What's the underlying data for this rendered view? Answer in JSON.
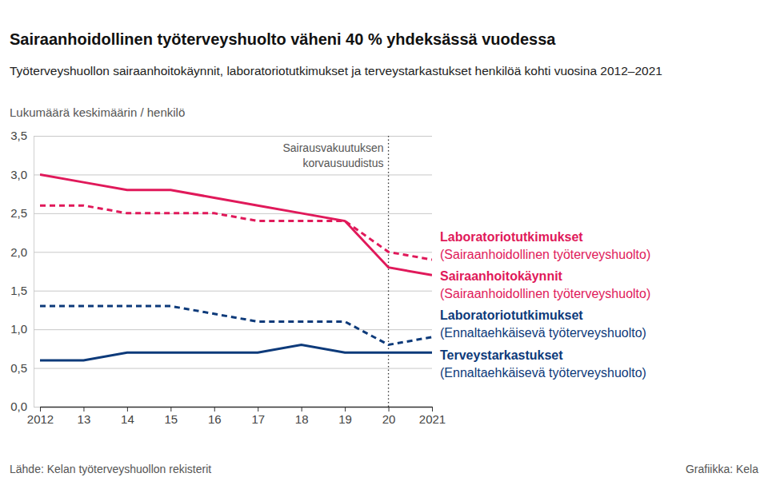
{
  "chart_data": {
    "type": "line",
    "title": "Sairaanhoidollinen työterveyshuolto väheni 40 % yhdeksässä vuodessa",
    "subtitle": "Työterveyshuollon sairaanhoitokäynnit, laboratoriotutkimukset ja terveystarkastukset henkilöä kohti vuosina 2012–2021",
    "y_label": "Lukumäärä keskimäärin / henkilö",
    "source": "Lähde: Kelan työterveyshuollon rekisterit",
    "credit": "Grafiikka: Kela",
    "x": [
      2012,
      2013,
      2014,
      2015,
      2016,
      2017,
      2018,
      2019,
      2020,
      2021
    ],
    "xlim": [
      2012,
      2021
    ],
    "xticks": [
      2012,
      {
        "value": 2013,
        "label": "13"
      },
      {
        "value": 2014,
        "label": "14"
      },
      {
        "value": 2015,
        "label": "15"
      },
      {
        "value": 2016,
        "label": "16"
      },
      {
        "value": 2017,
        "label": "17"
      },
      {
        "value": 2018,
        "label": "18"
      },
      {
        "value": 2019,
        "label": "19"
      },
      {
        "value": 2020,
        "label": "20"
      },
      2021
    ],
    "ylim": [
      0,
      3.5
    ],
    "yticks": [
      {
        "value": 0,
        "label": "0,0"
      },
      {
        "value": 0.5,
        "label": "0,5"
      },
      {
        "value": 1,
        "label": "1,0"
      },
      {
        "value": 1.5,
        "label": "1,5"
      },
      {
        "value": 2,
        "label": "2,0"
      },
      {
        "value": 2.5,
        "label": "2,5"
      },
      {
        "value": 3,
        "label": "3,0"
      },
      {
        "value": 3.5,
        "label": "3,5"
      }
    ],
    "grid": true,
    "annotations": [
      {
        "x": 2020,
        "text": [
          "Sairausvakuutuksen",
          "korvausuudistus"
        ],
        "line_style": "dotted"
      }
    ],
    "series": [
      {
        "name": "Laboratoriotutkimukset",
        "group": "(Sairaanhoidollinen työterveyshuolto)",
        "color": "#e0195a",
        "line_style": "dashed",
        "values": [
          2.6,
          2.6,
          2.5,
          2.5,
          2.5,
          2.4,
          2.4,
          2.4,
          2.0,
          1.9
        ]
      },
      {
        "name": "Sairaanhoitokäynnit",
        "group": "(Sairaanhoidollinen työterveyshuolto)",
        "color": "#e0195a",
        "line_style": "solid",
        "values": [
          3.0,
          2.9,
          2.8,
          2.8,
          2.7,
          2.6,
          2.5,
          2.4,
          1.8,
          1.7
        ]
      },
      {
        "name": "Laboratoriotutkimukset",
        "group": "(Ennaltaehkäisevä työterveyshuolto)",
        "color": "#0d3a7a",
        "line_style": "dashed",
        "values": [
          1.3,
          1.3,
          1.3,
          1.3,
          1.2,
          1.1,
          1.1,
          1.1,
          0.8,
          0.9
        ]
      },
      {
        "name": "Terveystarkastukset",
        "group": "(Ennaltaehkäisevä työterveyshuolto)",
        "color": "#0d3a7a",
        "line_style": "solid",
        "values": [
          0.6,
          0.6,
          0.7,
          0.7,
          0.7,
          0.7,
          0.8,
          0.7,
          0.7,
          0.7
        ]
      }
    ]
  }
}
